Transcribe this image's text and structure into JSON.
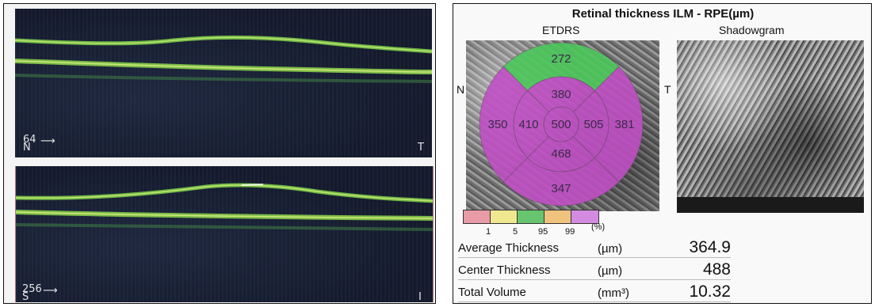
{
  "oct_scans": [
    {
      "number": "64",
      "start_side": "N",
      "end_side": "T"
    },
    {
      "number": "256",
      "start_side": "S",
      "end_side": "I"
    }
  ],
  "report": {
    "title": "Retinal thickness ILM - RPE(µm)",
    "etdrs_label": "ETDRS",
    "shadowgram_label": "Shadowgram",
    "side_left": "N",
    "side_right": "T",
    "sectors": {
      "outer_superior": "272",
      "inner_superior": "380",
      "outer_nasal": "350",
      "inner_nasal": "410",
      "center": "500",
      "inner_temporal": "505",
      "outer_temporal": "381",
      "inner_inferior": "468",
      "outer_inferior": "347"
    },
    "sector_colors": {
      "normal": "#4cc75a",
      "thick": "#c04fc4"
    },
    "color_scale": {
      "colors": [
        "#e89aa6",
        "#f0e88e",
        "#67c56f",
        "#efc37e",
        "#d28be0"
      ],
      "ticks": [
        "1",
        "5",
        "95",
        "99"
      ],
      "unit": "(%)"
    },
    "table": [
      {
        "label": "Average Thickness",
        "unit": "(µm)",
        "value": "364.9"
      },
      {
        "label": "Center Thickness",
        "unit": "(µm)",
        "value": "488"
      },
      {
        "label": "Total Volume",
        "unit": "(mm³)",
        "value": "10.32"
      }
    ]
  }
}
